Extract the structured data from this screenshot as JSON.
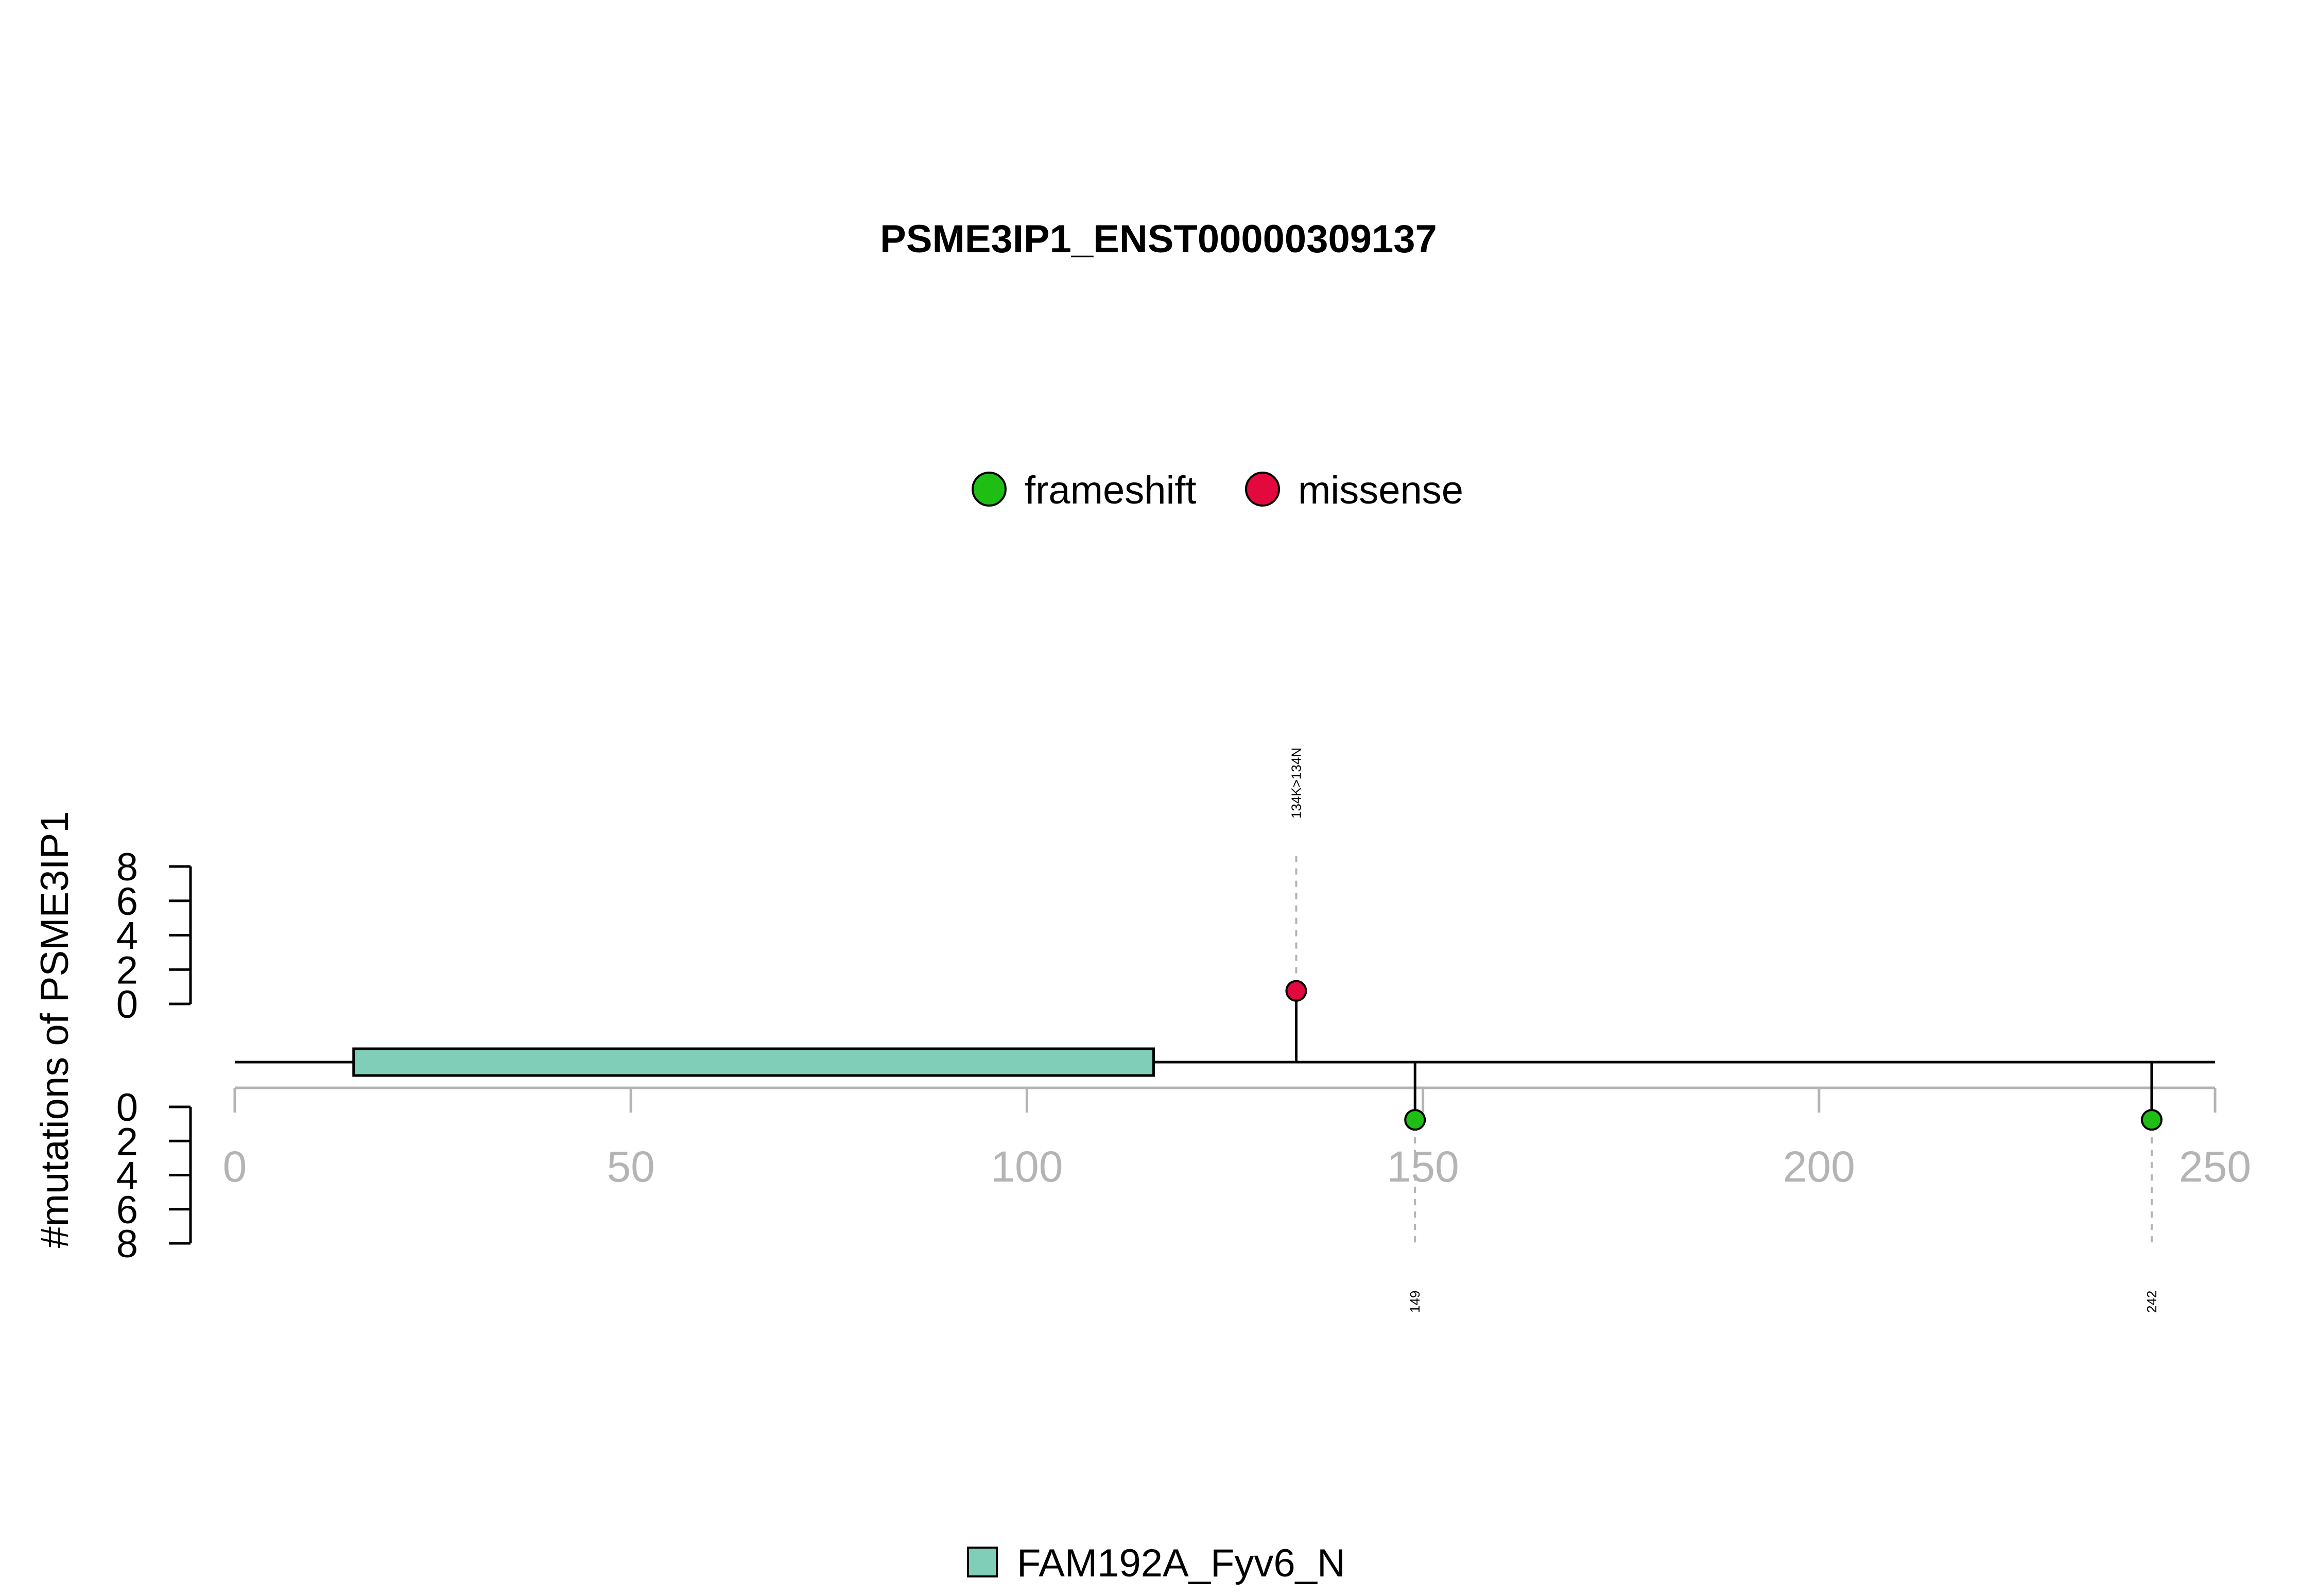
{
  "chart_data": {
    "type": "lollipop",
    "title": "PSME3IP1_ENST00000309137",
    "ylabel": "#mutations of PSME3IP1",
    "xlim": [
      0,
      250
    ],
    "x_ticks": [
      "0",
      "50",
      "100",
      "150",
      "200",
      "250"
    ],
    "y_ticks_upper": [
      "0",
      "2",
      "4",
      "6",
      "8"
    ],
    "y_ticks_lower": [
      "0",
      "2",
      "4",
      "6",
      "8"
    ],
    "protein_length": 250,
    "mutation_types": [
      {
        "name": "frameshift",
        "color": "#1fbe15"
      },
      {
        "name": "missense",
        "color": "#e3093f"
      }
    ],
    "mutations": [
      {
        "position": 134,
        "count": 1,
        "type": "missense",
        "label": "134K>134N",
        "side": "top"
      },
      {
        "position": 149,
        "count": 1,
        "type": "frameshift",
        "label": "149",
        "side": "bottom"
      },
      {
        "position": 242,
        "count": 1,
        "type": "frameshift",
        "label": "242",
        "side": "bottom"
      }
    ],
    "domains": [
      {
        "name": "FAM192A_Fyv6_N",
        "start": 15,
        "end": 116,
        "color": "#80cdb8"
      }
    ]
  }
}
